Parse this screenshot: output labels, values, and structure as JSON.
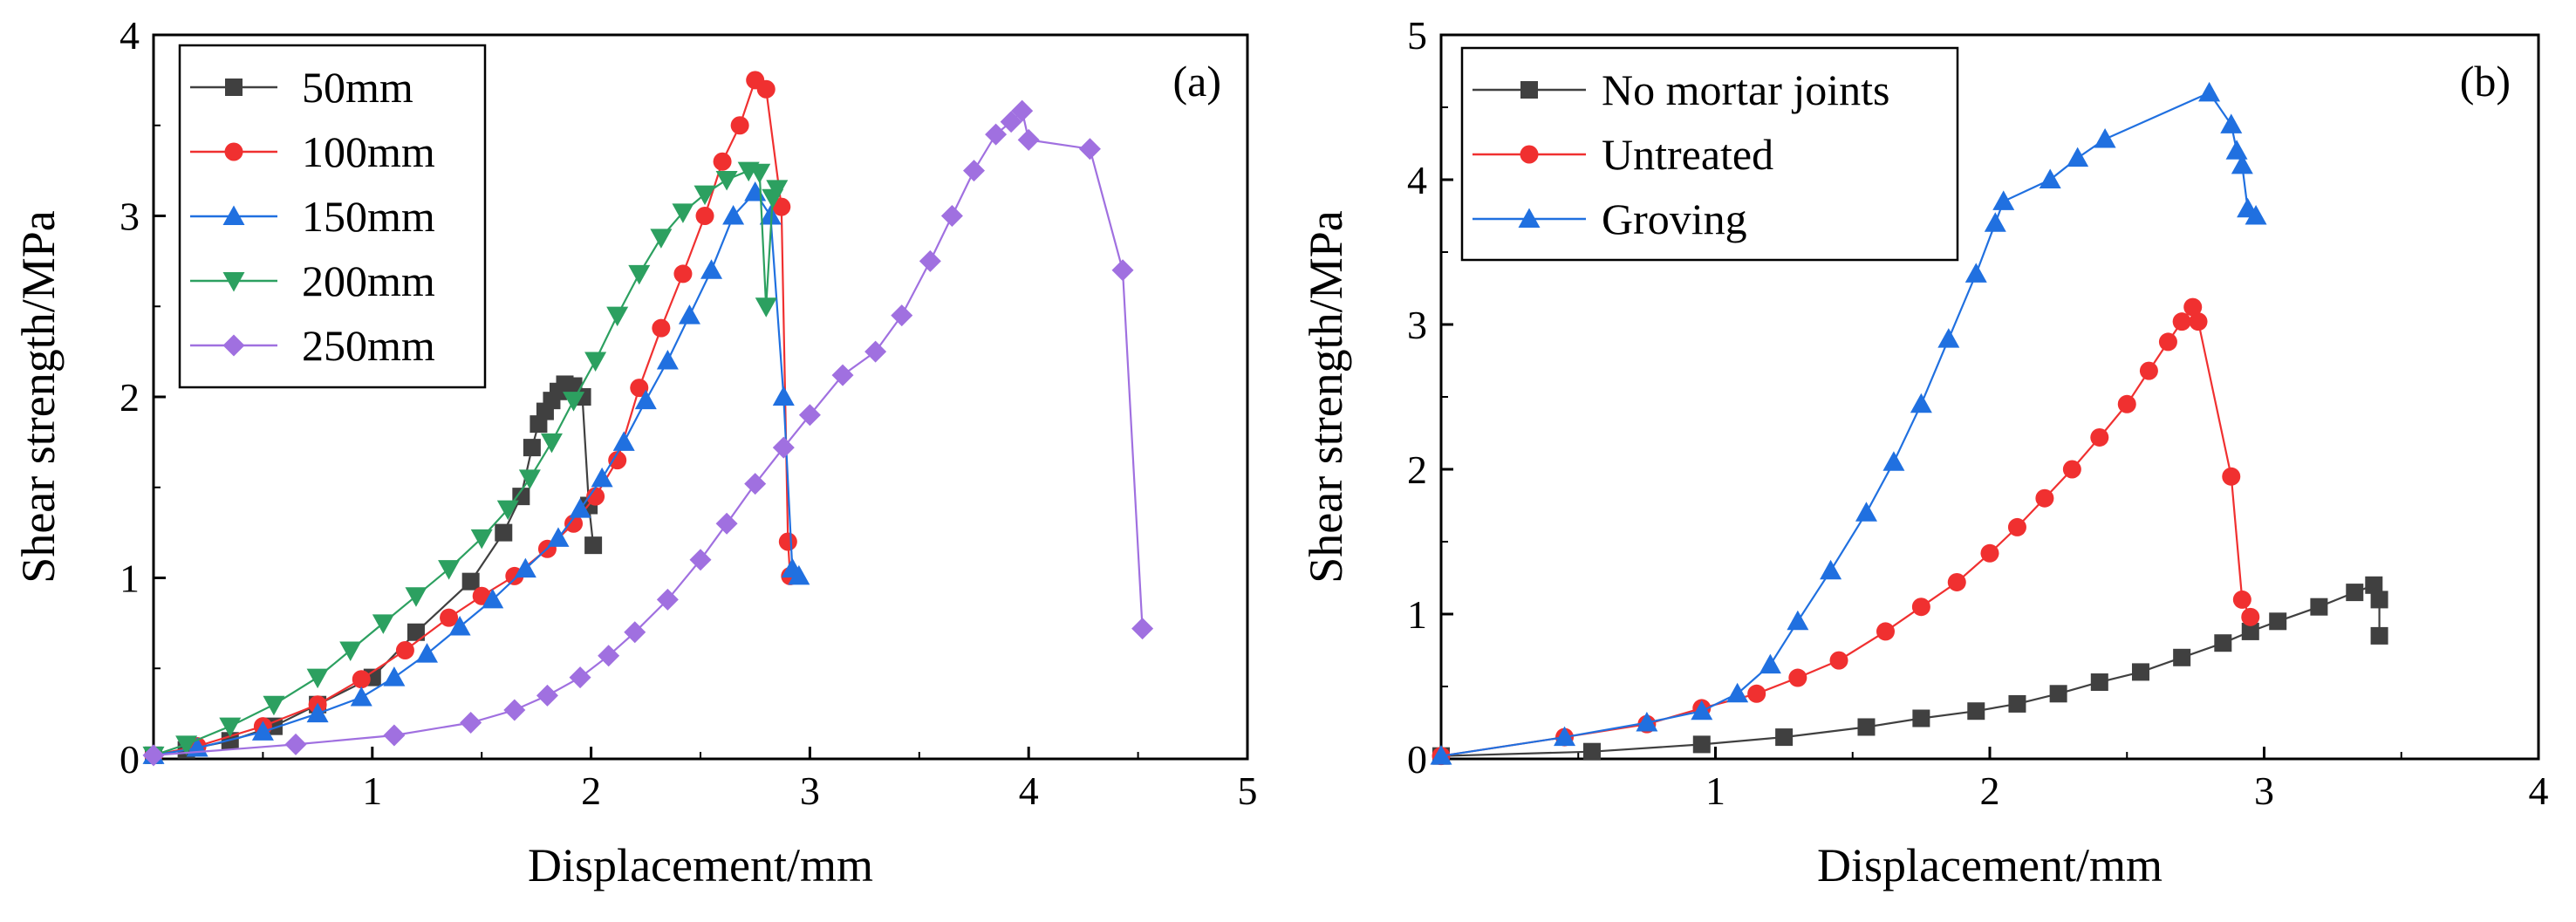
{
  "chart_data": [
    {
      "type": "line",
      "panel": "(a)",
      "xlabel": "Displacement/mm",
      "ylabel": "Shear strength/MPa",
      "xlim": [
        0,
        5
      ],
      "ylim": [
        0,
        4
      ],
      "xticks": [
        1,
        2,
        3,
        4,
        5
      ],
      "yticks": [
        0,
        1,
        2,
        3,
        4
      ],
      "legend_position": "top-left",
      "series": [
        {
          "name": "50mm",
          "color": "#404040",
          "marker": "square",
          "x": [
            0.0,
            0.15,
            0.35,
            0.55,
            0.75,
            1.0,
            1.2,
            1.45,
            1.6,
            1.68,
            1.73,
            1.76,
            1.79,
            1.82,
            1.85,
            1.88,
            1.92,
            1.96,
            1.99,
            2.01
          ],
          "y": [
            0.02,
            0.05,
            0.1,
            0.18,
            0.3,
            0.45,
            0.7,
            0.98,
            1.25,
            1.45,
            1.72,
            1.85,
            1.92,
            1.98,
            2.03,
            2.07,
            2.06,
            2.0,
            1.4,
            1.18
          ]
        },
        {
          "name": "100mm",
          "color": "#f03030",
          "marker": "circle",
          "x": [
            0.0,
            0.2,
            0.5,
            0.75,
            0.95,
            1.15,
            1.35,
            1.5,
            1.65,
            1.8,
            1.92,
            2.02,
            2.12,
            2.22,
            2.32,
            2.42,
            2.52,
            2.6,
            2.68,
            2.75,
            2.8,
            2.87,
            2.9,
            2.91
          ],
          "y": [
            0.02,
            0.07,
            0.18,
            0.3,
            0.44,
            0.6,
            0.78,
            0.9,
            1.01,
            1.16,
            1.3,
            1.45,
            1.65,
            2.05,
            2.38,
            2.68,
            3.0,
            3.3,
            3.5,
            3.75,
            3.7,
            3.05,
            1.2,
            1.01
          ]
        },
        {
          "name": "150mm",
          "color": "#2070e0",
          "marker": "triangle-up",
          "x": [
            0.0,
            0.2,
            0.5,
            0.75,
            0.95,
            1.1,
            1.25,
            1.4,
            1.55,
            1.7,
            1.85,
            1.95,
            2.05,
            2.15,
            2.25,
            2.35,
            2.45,
            2.55,
            2.65,
            2.75,
            2.82,
            2.88,
            2.92,
            2.95
          ],
          "y": [
            0.02,
            0.06,
            0.15,
            0.25,
            0.34,
            0.45,
            0.58,
            0.73,
            0.88,
            1.05,
            1.22,
            1.38,
            1.55,
            1.75,
            1.98,
            2.2,
            2.45,
            2.7,
            3.0,
            3.13,
            3.0,
            2.0,
            1.05,
            1.01
          ]
        },
        {
          "name": "200mm",
          "color": "#2ca060",
          "marker": "triangle-down",
          "x": [
            0.0,
            0.15,
            0.35,
            0.55,
            0.75,
            0.9,
            1.05,
            1.2,
            1.35,
            1.5,
            1.62,
            1.72,
            1.82,
            1.92,
            2.02,
            2.12,
            2.22,
            2.32,
            2.42,
            2.52,
            2.62,
            2.72,
            2.77,
            2.8,
            2.83,
            2.85
          ],
          "y": [
            0.02,
            0.08,
            0.18,
            0.3,
            0.45,
            0.6,
            0.75,
            0.9,
            1.05,
            1.22,
            1.38,
            1.55,
            1.75,
            1.98,
            2.2,
            2.45,
            2.68,
            2.88,
            3.02,
            3.12,
            3.2,
            3.25,
            3.24,
            2.5,
            3.1,
            3.15
          ]
        },
        {
          "name": "250mm",
          "color": "#a070e0",
          "marker": "diamond",
          "x": [
            0.0,
            0.65,
            1.1,
            1.45,
            1.65,
            1.8,
            1.95,
            2.08,
            2.2,
            2.35,
            2.5,
            2.62,
            2.75,
            2.88,
            3.0,
            3.15,
            3.3,
            3.42,
            3.55,
            3.65,
            3.75,
            3.85,
            3.92,
            3.97,
            4.0,
            4.28,
            4.43,
            4.52
          ],
          "y": [
            0.02,
            0.08,
            0.13,
            0.2,
            0.27,
            0.35,
            0.45,
            0.57,
            0.7,
            0.88,
            1.1,
            1.3,
            1.52,
            1.72,
            1.9,
            2.12,
            2.25,
            2.45,
            2.75,
            3.0,
            3.25,
            3.45,
            3.52,
            3.58,
            3.42,
            3.37,
            2.7,
            0.72
          ]
        }
      ]
    },
    {
      "type": "line",
      "panel": "(b)",
      "xlabel": "Displacement/mm",
      "ylabel": "Shear strength/MPa",
      "xlim": [
        0,
        4
      ],
      "ylim": [
        0,
        5
      ],
      "xticks": [
        1,
        2,
        3,
        4
      ],
      "yticks": [
        0,
        1,
        2,
        3,
        4,
        5
      ],
      "legend_position": "top-left",
      "series": [
        {
          "name": "No mortar joints",
          "color": "#404040",
          "marker": "square",
          "x": [
            0.0,
            0.55,
            0.95,
            1.25,
            1.55,
            1.75,
            1.95,
            2.1,
            2.25,
            2.4,
            2.55,
            2.7,
            2.85,
            2.95,
            3.05,
            3.2,
            3.33,
            3.4,
            3.42,
            3.42
          ],
          "y": [
            0.02,
            0.05,
            0.1,
            0.15,
            0.22,
            0.28,
            0.33,
            0.38,
            0.45,
            0.53,
            0.6,
            0.7,
            0.8,
            0.88,
            0.95,
            1.05,
            1.15,
            1.2,
            1.1,
            0.85
          ]
        },
        {
          "name": "Untreated",
          "color": "#f03030",
          "marker": "circle",
          "x": [
            0.0,
            0.45,
            0.75,
            0.95,
            1.15,
            1.3,
            1.45,
            1.62,
            1.75,
            1.88,
            2.0,
            2.1,
            2.2,
            2.3,
            2.4,
            2.5,
            2.58,
            2.65,
            2.7,
            2.74,
            2.76,
            2.88,
            2.92,
            2.95
          ],
          "y": [
            0.02,
            0.15,
            0.24,
            0.35,
            0.45,
            0.56,
            0.68,
            0.88,
            1.05,
            1.22,
            1.42,
            1.6,
            1.8,
            2.0,
            2.22,
            2.45,
            2.68,
            2.88,
            3.02,
            3.12,
            3.02,
            1.95,
            1.1,
            0.98
          ]
        },
        {
          "name": "Groving",
          "color": "#2070e0",
          "marker": "triangle-up",
          "x": [
            0.0,
            0.45,
            0.75,
            0.95,
            1.08,
            1.2,
            1.3,
            1.42,
            1.55,
            1.65,
            1.75,
            1.85,
            1.95,
            2.02,
            2.05,
            2.22,
            2.32,
            2.42,
            2.8,
            2.88,
            2.9,
            2.92,
            2.94,
            2.97
          ],
          "y": [
            0.02,
            0.15,
            0.25,
            0.33,
            0.45,
            0.65,
            0.95,
            1.3,
            1.7,
            2.05,
            2.45,
            2.9,
            3.35,
            3.7,
            3.85,
            4.0,
            4.15,
            4.28,
            4.6,
            4.38,
            4.2,
            4.1,
            3.8,
            3.75
          ]
        }
      ]
    }
  ]
}
